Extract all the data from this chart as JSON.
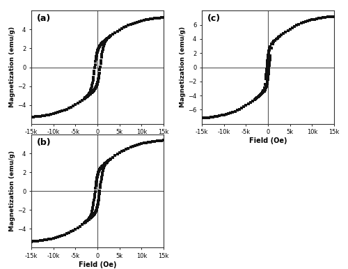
{
  "title_a": "(a)",
  "title_b": "(b)",
  "title_c": "(c)",
  "xlabel": "Field (Oe)",
  "ylabel": "Magnetization (emu/g)",
  "xlim": [
    -15000,
    15000
  ],
  "ylim_a": [
    -6,
    6
  ],
  "ylim_b": [
    -6,
    6
  ],
  "ylim_c": [
    -8,
    8
  ],
  "xticks": [
    -15000,
    -10000,
    -5000,
    0,
    5000,
    10000,
    15000
  ],
  "xtick_labels": [
    "-15k",
    "-10k",
    "-5k",
    "0",
    "5k",
    "10k",
    "15k"
  ],
  "yticks_ab": [
    -4,
    -2,
    0,
    2,
    4
  ],
  "yticks_c": [
    -6,
    -4,
    -2,
    0,
    2,
    4,
    6
  ],
  "marker": "s",
  "marker_size": 2.5,
  "marker_color": "#111111",
  "bg_color": "#ffffff",
  "axline_color": "#555555",
  "axline_lw": 0.8,
  "coercivity_a": 700,
  "coercivity_b": 600,
  "coercivity_c": 250,
  "saturation_a": 5.5,
  "saturation_b": 5.6,
  "saturation_c": 7.5
}
